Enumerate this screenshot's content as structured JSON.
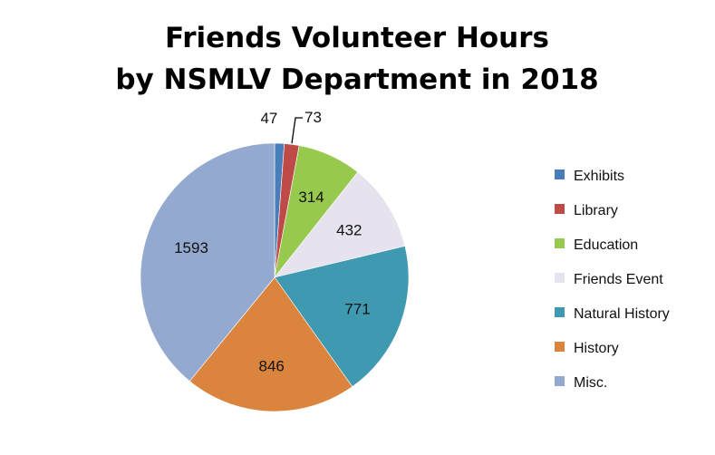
{
  "chart_data": {
    "type": "pie",
    "title_lines": [
      "Friends Volunteer Hours",
      "by NSMLV Department in 2018"
    ],
    "categories": [
      "Exhibits",
      "Library",
      "Education",
      "Friends Event",
      "Natural History",
      "History",
      "Misc."
    ],
    "values": [
      47,
      73,
      314,
      432,
      771,
      846,
      1593
    ],
    "colors": [
      "#4a7ebb",
      "#be4b48",
      "#98c94f",
      "#e6e3ee",
      "#3f99b0",
      "#db843d",
      "#93a9cf"
    ],
    "legend_position": "right",
    "start_angle": "12 o'clock",
    "direction": "clockwise"
  }
}
